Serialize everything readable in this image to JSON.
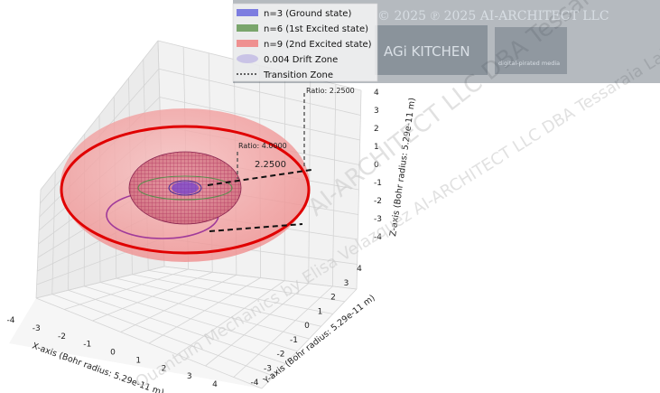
{
  "chart_data": {
    "type": "3d-orbital",
    "title": "",
    "xlabel": "X-axis (Bohr radius: 5.29e-11 m)",
    "ylabel": "Y-axis (Bohr radius: 5.29e-11 m)",
    "zlabel": "Z-axis (Bohr radius: 5.29e-11 m)",
    "xlim": [
      -4,
      4
    ],
    "ylim": [
      -4,
      4
    ],
    "zlim": [
      -4,
      4
    ],
    "x_ticks": [
      "-4",
      "-3",
      "-2",
      "-1",
      "0",
      "1",
      "2",
      "3",
      "4"
    ],
    "y_ticks": [
      "-4",
      "-3",
      "-2",
      "-1",
      "0",
      "1",
      "2",
      "3",
      "4"
    ],
    "z_ticks": [
      "-4",
      "-3",
      "-2",
      "-1",
      "0",
      "1",
      "2",
      "3",
      "4"
    ],
    "grid": true,
    "legend_position": "top-center",
    "series": [
      {
        "name": "n=3 (Ground state)",
        "radius": 0.5,
        "color": "#7d7de0"
      },
      {
        "name": "n=6 (1st Excited state)",
        "radius": 1.5,
        "color": "#7aa56c"
      },
      {
        "name": "n=9 (2nd Excited state)",
        "radius": 4.0,
        "color": "#ef9090"
      },
      {
        "name": "0.004 Drift Zone",
        "color": "#b8b8e0"
      },
      {
        "name": "Transition Zone",
        "color": "#333333"
      }
    ],
    "annotations": [
      {
        "text": "Ratio: 2.2500"
      },
      {
        "text": "Ratio: 4.0000"
      },
      {
        "text": "2.2500"
      }
    ],
    "colors": {
      "outer_sphere": "#f4a3a3",
      "outer_orbit": "#e00000",
      "inner_mesh": "#c23a6a",
      "drift_orbit": "#a03a9a",
      "core": "#6a3ad0"
    }
  },
  "watermark": "AI-ARCHITECT LLC DBA Tessaraia Labs",
  "watermark_lower": "Quantum Mechanics by Elisa Velazquez AI-ARCHITECT LLC DBA Tessaraia Labs",
  "logo_text": "AGi KITCHEN",
  "logo_sub": "digital-pirated media",
  "copyright": "© 2025 ℗ 2025 AI-ARCHITECT LLC"
}
